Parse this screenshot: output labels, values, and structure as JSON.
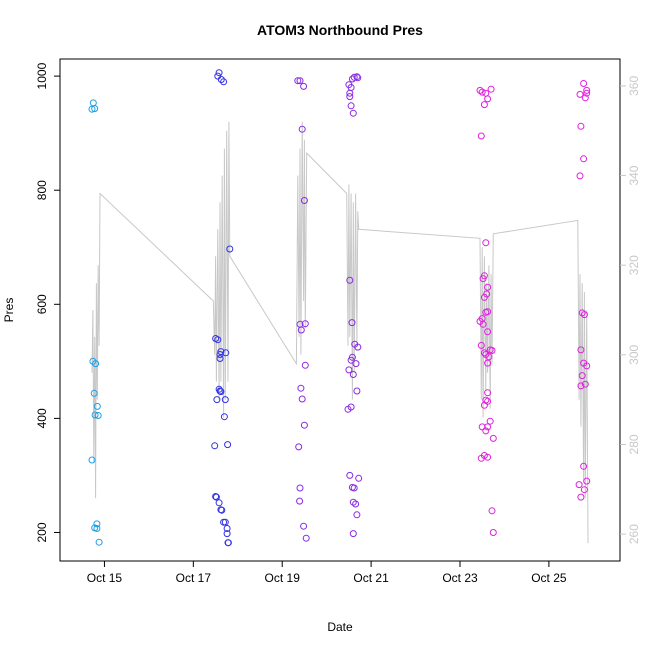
{
  "chart_data": {
    "type": "scatter",
    "title": "ATOM3 Northbound Pres",
    "xlabel": "Date",
    "ylabel": "Pres",
    "x_unit": "days in October",
    "xlim": [
      14.0,
      26.6
    ],
    "ylim": [
      150,
      1030
    ],
    "y2lim": [
      254,
      366
    ],
    "grid": false,
    "x_ticks": [
      15,
      17,
      19,
      21,
      23,
      25
    ],
    "x_tick_labels": [
      "Oct 15",
      "Oct 17",
      "Oct 19",
      "Oct 21",
      "Oct 23",
      "Oct 25"
    ],
    "y_ticks": [
      200,
      400,
      600,
      800,
      1000
    ],
    "y_tick_labels": [
      "200",
      "400",
      "600",
      "800",
      "1000"
    ],
    "y2_ticks": [
      260,
      280,
      300,
      320,
      340,
      360
    ],
    "y2_tick_labels": [
      "260",
      "280",
      "300",
      "320",
      "340",
      "360"
    ],
    "colors": {
      "deep_sky_blue": "#1e9fe6",
      "blue": "#3333e6",
      "blue_violet": "#8a2be2",
      "magenta": "#e020e0",
      "gray_line": "#c8c8c8"
    },
    "series": [
      {
        "color_key": "deep_sky_blue",
        "x": [
          14.72,
          14.75,
          14.78,
          14.74,
          14.8,
          14.77,
          14.84,
          14.86,
          14.72,
          14.79,
          14.83,
          14.78,
          14.83,
          14.88
        ],
        "y": [
          942,
          953,
          943,
          500,
          496,
          444,
          421,
          405,
          327,
          406,
          215,
          208,
          207,
          183
        ]
      },
      {
        "color_key": "blue",
        "x": [
          17.55,
          17.58,
          17.63,
          17.68,
          17.5,
          17.55,
          17.62,
          17.6,
          17.73,
          17.82,
          17.6,
          17.58,
          17.53,
          17.62,
          17.72,
          17.7,
          17.48,
          17.77,
          17.5,
          17.52,
          17.58,
          17.62,
          17.64,
          17.68,
          17.72,
          17.76,
          17.76,
          17.78,
          17.79,
          17.6
        ],
        "y": [
          1000,
          1006,
          994,
          990,
          540,
          538,
          517,
          512,
          515,
          697,
          505,
          451,
          433,
          447,
          433,
          403,
          352,
          354,
          263,
          262,
          252,
          240,
          239,
          218,
          218,
          207,
          198,
          182,
          182,
          448
        ]
      },
      {
        "color_key": "blue_violet",
        "x": [
          19.35,
          19.4,
          19.48,
          19.45,
          19.5,
          19.52,
          19.4,
          19.43,
          19.52,
          19.42,
          19.45,
          19.5,
          19.37,
          19.4,
          19.39,
          19.48,
          19.54
        ],
        "y": [
          992,
          992,
          982,
          907,
          782,
          566,
          565,
          555,
          493,
          453,
          434,
          388,
          350,
          278,
          255,
          211,
          190
        ]
      },
      {
        "color_key": "blue_violet",
        "x": [
          20.5,
          20.55,
          20.58,
          20.62,
          20.68,
          20.7,
          20.52,
          20.55,
          20.6,
          20.52,
          20.57,
          20.63,
          20.7,
          20.58,
          20.55,
          20.5,
          20.6,
          20.68,
          20.48,
          20.55,
          20.52,
          20.58,
          20.62,
          20.6,
          20.65,
          20.72,
          20.68,
          20.6,
          20.66,
          20.52
        ],
        "y": [
          985,
          980,
          995,
          998,
          999,
          997,
          970,
          948,
          935,
          642,
          568,
          530,
          525,
          507,
          502,
          485,
          477,
          448,
          416,
          420,
          300,
          279,
          278,
          253,
          250,
          295,
          231,
          198,
          496,
          964
        ]
      },
      {
        "color_key": "magenta",
        "x": [
          23.45,
          23.5,
          23.58,
          23.55,
          23.62,
          23.7,
          23.48,
          23.55,
          23.62,
          23.52,
          23.6,
          23.55,
          23.62,
          23.58,
          23.5,
          23.45,
          23.52,
          23.62,
          23.68,
          23.58,
          23.65,
          23.72,
          23.48,
          23.55,
          23.62,
          23.58,
          23.55,
          23.62,
          23.68,
          23.5,
          23.58,
          23.62,
          23.75,
          23.48,
          23.55,
          23.62,
          23.58,
          23.62,
          23.75,
          23.72
        ],
        "y": [
          975,
          972,
          970,
          950,
          960,
          977,
          895,
          650,
          630,
          645,
          618,
          612,
          587,
          586,
          575,
          570,
          565,
          552,
          520,
          512,
          508,
          519,
          528,
          515,
          497,
          432,
          423,
          445,
          395,
          385,
          378,
          385,
          365,
          330,
          335,
          332,
          708,
          430,
          200,
          238
        ]
      },
      {
        "color_key": "magenta",
        "x": [
          25.7,
          25.78,
          25.82,
          25.85,
          25.72,
          25.78,
          25.7,
          25.75,
          25.8,
          25.72,
          25.78,
          25.85,
          25.75,
          25.82,
          25.72,
          25.78,
          25.85,
          25.68,
          25.72,
          25.8,
          25.85
        ],
        "y": [
          968,
          987,
          962,
          975,
          912,
          855,
          825,
          585,
          582,
          520,
          497,
          492,
          475,
          460,
          457,
          316,
          290,
          284,
          262,
          275,
          970
        ]
      }
    ],
    "line_series": {
      "color_key": "gray_line",
      "axis": "right",
      "x": [
        14.72,
        14.74,
        14.76,
        14.78,
        14.8,
        14.82,
        14.84,
        14.86,
        14.88,
        14.9,
        17.45,
        17.48,
        17.5,
        17.52,
        17.55,
        17.58,
        17.6,
        17.62,
        17.65,
        17.68,
        17.7,
        17.72,
        17.75,
        17.78,
        17.8,
        17.82,
        19.32,
        19.35,
        19.38,
        19.4,
        19.42,
        19.45,
        19.48,
        19.5,
        19.52,
        19.55,
        20.45,
        20.48,
        20.5,
        20.52,
        20.55,
        20.58,
        20.6,
        20.62,
        20.65,
        20.68,
        20.7,
        20.72,
        23.45,
        23.48,
        23.5,
        23.52,
        23.55,
        23.58,
        23.6,
        23.62,
        23.65,
        23.68,
        23.7,
        23.72,
        23.75,
        25.65,
        25.68,
        25.7,
        25.72,
        25.75,
        25.78,
        25.8,
        25.82,
        25.85,
        25.88
      ],
      "y": [
        296,
        310,
        276,
        304,
        268,
        316,
        290,
        320,
        302,
        336,
        312,
        300,
        322,
        294,
        328,
        290,
        334,
        294,
        340,
        286,
        346,
        290,
        350,
        294,
        352,
        322,
        298,
        340,
        304,
        346,
        300,
        352,
        312,
        348,
        306,
        345,
        336,
        302,
        338,
        304,
        336,
        290,
        334,
        296,
        336,
        302,
        332,
        328,
        326,
        290,
        324,
        286,
        322,
        292,
        316,
        296,
        320,
        288,
        318,
        298,
        327,
        330,
        290,
        318,
        284,
        316,
        272,
        314,
        268,
        310,
        258
      ]
    }
  }
}
